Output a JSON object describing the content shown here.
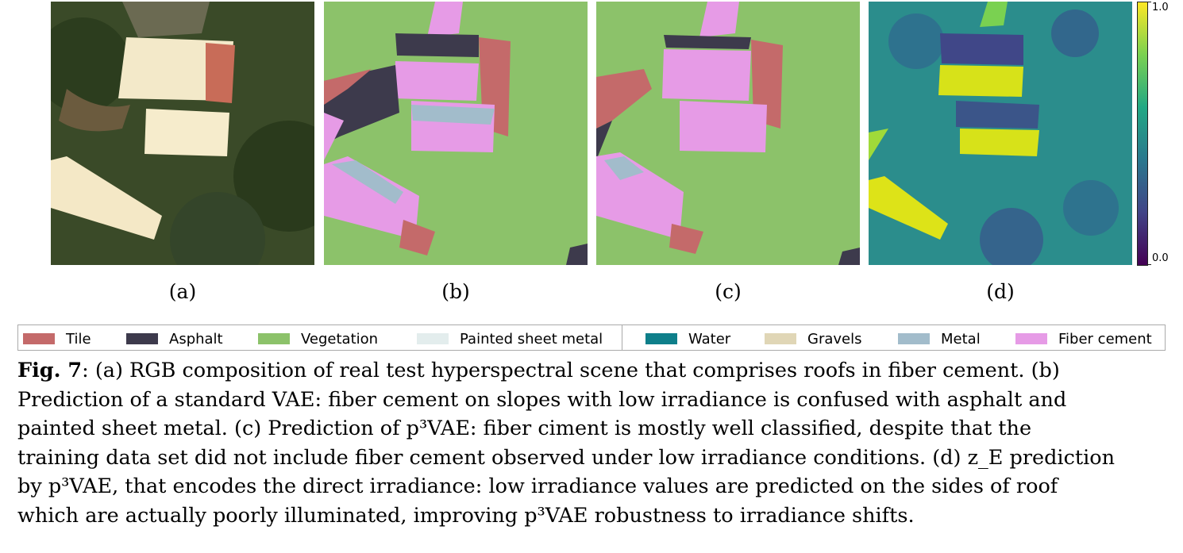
{
  "panels": [
    {
      "label": "(a)",
      "image": "RGB composition of hyperspectral scene"
    },
    {
      "label": "(b)",
      "image": "Standard VAE classification map"
    },
    {
      "label": "(c)",
      "image": "p3VAE classification map"
    },
    {
      "label": "(d)",
      "image": "z_E prediction map (viridis)"
    }
  ],
  "colorbar": {
    "max_label": "1.0",
    "min_label": "0.0",
    "colormap": "viridis"
  },
  "legend": [
    {
      "label": "Tile",
      "color": "#c46a6a"
    },
    {
      "label": "Asphalt",
      "color": "#3d3a4c"
    },
    {
      "label": "Vegetation",
      "color": "#8cc26a"
    },
    {
      "label": "Painted sheet metal",
      "color": "#e3eded"
    },
    {
      "label": "Water",
      "color": "#0e7f8a"
    },
    {
      "label": "Gravels",
      "color": "#e0d6b6"
    },
    {
      "label": "Metal",
      "color": "#a2bccb"
    },
    {
      "label": "Fiber cement",
      "color": "#e69be6"
    }
  ],
  "caption": {
    "fig_label": "Fig. 7",
    "lines": [
      ": (a) RGB composition of real test hyperspectral scene that comprises roofs in fiber cement. (b)",
      "Prediction of a standard VAE: fiber cement on slopes with low irradiance is confused with asphalt and",
      "painted sheet metal. (c) Prediction of p³VAE: fiber ciment is mostly well classified, despite that the",
      "training data set did not include fiber cement observed under low irradiance conditions. (d) z_E prediction",
      "by p³VAE, that encodes the direct irradiance: low irradiance values are predicted on the sides of roof",
      "which are actually poorly illuminated, improving p³VAE robustness to irradiance shifts."
    ]
  }
}
